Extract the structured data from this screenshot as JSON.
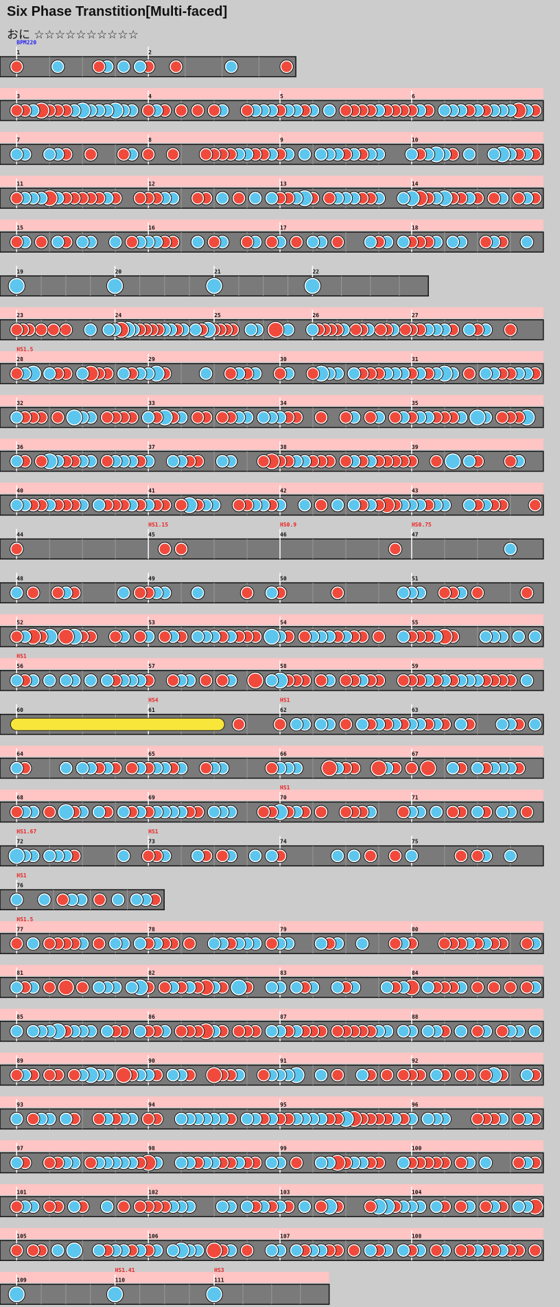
{
  "header": {
    "title": "Six Phase Transtition[Multi-faced]",
    "difficulty": "おに ☆☆☆☆☆☆☆☆☆☆"
  },
  "label_colors": {
    "bpm": "#2222ee",
    "scroll": "#ee2222"
  },
  "rows": [
    {
      "measures": [
        {
          "number": 1,
          "label": "BPM220",
          "label_kind": "bpm"
        },
        {
          "number": 2
        }
      ]
    },
    {
      "measures": [
        {
          "number": 3
        },
        {
          "number": 4
        },
        {
          "number": 5
        },
        {
          "number": 6
        }
      ]
    },
    {
      "measures": [
        {
          "number": 7
        },
        {
          "number": 8
        },
        {
          "number": 9
        },
        {
          "number": 10
        }
      ]
    },
    {
      "measures": [
        {
          "number": 11
        },
        {
          "number": 12
        },
        {
          "number": 13
        },
        {
          "number": 14
        }
      ]
    },
    {
      "measures": [
        {
          "number": 15
        },
        {
          "number": 16
        },
        {
          "number": 17
        },
        {
          "number": 18
        }
      ]
    },
    {
      "measures": [
        {
          "number": 19
        },
        {
          "number": 20
        },
        {
          "number": 21
        },
        {
          "number": 22
        }
      ]
    },
    {
      "measures": [
        {
          "number": 23
        },
        {
          "number": 24
        },
        {
          "number": 25
        },
        {
          "number": 26
        },
        {
          "number": 27
        }
      ]
    },
    {
      "measures": [
        {
          "number": 28,
          "label": "HS1.5",
          "label_kind": "scroll"
        },
        {
          "number": 29
        },
        {
          "number": 30
        },
        {
          "number": 31
        }
      ]
    },
    {
      "measures": [
        {
          "number": 32
        },
        {
          "number": 33
        },
        {
          "number": 34
        },
        {
          "number": 35
        }
      ]
    },
    {
      "measures": [
        {
          "number": 36
        },
        {
          "number": 37
        },
        {
          "number": 38
        },
        {
          "number": 39
        }
      ]
    },
    {
      "measures": [
        {
          "number": 40
        },
        {
          "number": 41
        },
        {
          "number": 42
        },
        {
          "number": 43
        }
      ]
    },
    {
      "measures": [
        {
          "number": 44
        },
        {
          "number": 45,
          "label": "HS1.15",
          "label_kind": "scroll"
        },
        {
          "number": 46,
          "label": "HS0.9",
          "label_kind": "scroll"
        },
        {
          "number": 47,
          "label": "HS0.75",
          "label_kind": "scroll"
        }
      ]
    },
    {
      "measures": [
        {
          "number": 48
        },
        {
          "number": 49
        },
        {
          "number": 50
        },
        {
          "number": 51
        }
      ]
    },
    {
      "measures": [
        {
          "number": 52
        },
        {
          "number": 53
        },
        {
          "number": 54
        },
        {
          "number": 55
        }
      ]
    },
    {
      "measures": [
        {
          "number": 56,
          "label": "HS1",
          "label_kind": "scroll"
        },
        {
          "number": 57
        },
        {
          "number": 58
        },
        {
          "number": 59
        }
      ]
    },
    {
      "measures": [
        {
          "number": 60
        },
        {
          "number": 61,
          "label": "HS4",
          "label_kind": "scroll"
        },
        {
          "number": 62,
          "label": "HS1",
          "label_kind": "scroll"
        },
        {
          "number": 63
        }
      ]
    },
    {
      "measures": [
        {
          "number": 64
        },
        {
          "number": 65
        },
        {
          "number": 66
        },
        {
          "number": 67
        }
      ]
    },
    {
      "measures": [
        {
          "number": 68
        },
        {
          "number": 69
        },
        {
          "number": 70,
          "label": "HS1",
          "label_kind": "scroll"
        },
        {
          "number": 71
        }
      ]
    },
    {
      "measures": [
        {
          "number": 72,
          "label": "HS1.67",
          "label_kind": "scroll"
        },
        {
          "number": 73,
          "label": "HS1",
          "label_kind": "scroll"
        },
        {
          "number": 74
        },
        {
          "number": 75
        }
      ]
    },
    {
      "measures": [
        {
          "number": 76,
          "label": "HS1",
          "label_kind": "scroll"
        }
      ]
    },
    {
      "measures": [
        {
          "number": 77,
          "label": "HS1.5",
          "label_kind": "scroll"
        },
        {
          "number": 78
        },
        {
          "number": 79
        },
        {
          "number": 80
        }
      ]
    },
    {
      "measures": [
        {
          "number": 81
        },
        {
          "number": 82
        },
        {
          "number": 83
        },
        {
          "number": 84
        }
      ]
    },
    {
      "measures": [
        {
          "number": 85
        },
        {
          "number": 86
        },
        {
          "number": 87
        },
        {
          "number": 88
        }
      ]
    },
    {
      "measures": [
        {
          "number": 89
        },
        {
          "number": 90
        },
        {
          "number": 91
        },
        {
          "number": 92
        }
      ]
    },
    {
      "measures": [
        {
          "number": 93
        },
        {
          "number": 94
        },
        {
          "number": 95
        },
        {
          "number": 96
        }
      ]
    },
    {
      "measures": [
        {
          "number": 97
        },
        {
          "number": 98
        },
        {
          "number": 99
        },
        {
          "number": 100
        }
      ]
    },
    {
      "measures": [
        {
          "number": 101
        },
        {
          "number": 102
        },
        {
          "number": 103
        },
        {
          "number": 104
        }
      ]
    },
    {
      "measures": [
        {
          "number": 105
        },
        {
          "number": 106
        },
        {
          "number": 107
        },
        {
          "number": 108
        }
      ]
    },
    {
      "measures": [
        {
          "number": 109
        },
        {
          "number": 110,
          "label": "HS1.41",
          "label_kind": "scroll"
        },
        {
          "number": 111,
          "label": "HS3",
          "label_kind": "scroll"
        }
      ]
    }
  ]
}
